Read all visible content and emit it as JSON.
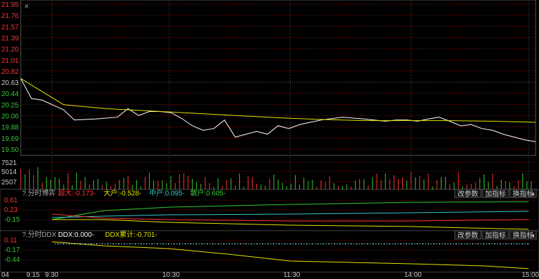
{
  "colors": {
    "up": "#ff3333",
    "down": "#33cc33",
    "grid": "#8a1010",
    "text_axis": "#c8c8c8",
    "price_line": "#ffffff",
    "avg_line": "#e6e600",
    "cyan": "#33cccc",
    "yellow": "#e6e600"
  },
  "window": {
    "close_label": "×"
  },
  "price_panel": {
    "prev_close": 20.63,
    "price_ticks": [
      "21.95",
      "21.76",
      "21.57",
      "21.39",
      "21.20",
      "21.01",
      "20.82",
      "20.63",
      "20.44",
      "20.25",
      "20.06",
      "19.88",
      "19.69",
      "19.50"
    ],
    "vol_ticks": [
      "7521",
      "5014",
      "2507"
    ]
  },
  "time_axis": {
    "labels": [
      "04",
      "9:15",
      "9:30",
      "10:30",
      "11:30",
      "14:00",
      "15:00"
    ]
  },
  "game_panel": {
    "title": "?.分时博弈",
    "legend": [
      {
        "text": "超大:-0.173-",
        "color": "#ff3333"
      },
      {
        "text": "大户:-0.528-",
        "color": "#e6e600"
      },
      {
        "text": "中户:0.095-",
        "color": "#33cccc"
      },
      {
        "text": "散户:0.605-",
        "color": "#33cc33"
      }
    ],
    "y_ticks": [
      "0.61",
      "0.23",
      "-0.15"
    ],
    "buttons": [
      "改参数",
      "加指标",
      "换指标"
    ]
  },
  "ddx_panel": {
    "title": "?.分时DDX",
    "legend": [
      {
        "text": "DDX:0.000-",
        "color": "#ffffff"
      },
      {
        "text": "DDX累计:-0.701-",
        "color": "#e6e600"
      }
    ],
    "y_ticks": [
      "0.11",
      "-0.17",
      "-0.44"
    ],
    "buttons": [
      "改参数",
      "加指标",
      "换指标"
    ]
  },
  "chart_data": {
    "type": "line",
    "title": "",
    "price_range": [
      19.4,
      21.95
    ],
    "prev_close": 20.63,
    "series": [
      {
        "key": "price",
        "x": [
          0,
          5,
          10,
          20,
          25,
          35,
          45,
          50,
          55,
          60,
          65,
          70,
          75,
          80,
          85,
          90,
          95,
          100,
          110,
          115,
          120,
          125,
          130,
          140,
          150,
          160,
          170,
          175,
          180,
          185,
          190,
          195,
          200,
          205,
          210,
          215,
          220,
          225,
          230,
          235,
          240
        ],
        "values": [
          20.63,
          20.28,
          20.25,
          20.08,
          19.9,
          19.92,
          19.95,
          20.1,
          19.98,
          20.05,
          20.05,
          20.03,
          19.93,
          19.8,
          19.72,
          19.75,
          19.9,
          19.6,
          19.7,
          19.65,
          19.8,
          19.75,
          19.82,
          19.9,
          19.95,
          19.92,
          19.88,
          19.9,
          19.9,
          19.88,
          19.92,
          19.95,
          19.88,
          19.8,
          19.82,
          19.75,
          19.72,
          19.65,
          19.6,
          19.55,
          19.52
        ]
      },
      {
        "key": "avg",
        "x": [
          0,
          10,
          20,
          40,
          60,
          80,
          100,
          120,
          140,
          160,
          180,
          200,
          220,
          240
        ],
        "values": [
          20.63,
          20.4,
          20.17,
          20.1,
          20.06,
          20.02,
          19.98,
          19.94,
          19.91,
          19.89,
          19.89,
          19.89,
          19.88,
          19.86
        ]
      }
    ],
    "volume": {
      "x_start": 0,
      "x_end": 240,
      "ylim": [
        0,
        8800
      ]
    }
  }
}
